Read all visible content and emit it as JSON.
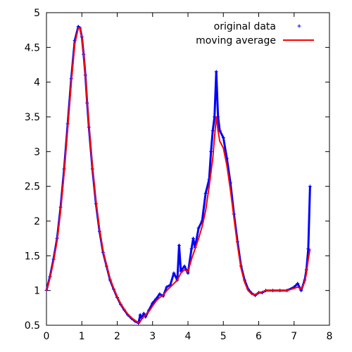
{
  "chart_data": {
    "type": "line",
    "xlim": [
      0,
      8
    ],
    "ylim": [
      0.5,
      5
    ],
    "x_ticks": [
      "0",
      "1",
      "2",
      "3",
      "4",
      "5",
      "6",
      "7",
      "8"
    ],
    "y_ticks": [
      "0.5",
      "1",
      "1.5",
      "2",
      "2.5",
      "3",
      "3.5",
      "4",
      "4.5",
      "5"
    ],
    "grid": false,
    "legend": "top-right",
    "colors": {
      "original": "#0000ff",
      "average": "#ff0000"
    },
    "series": [
      {
        "name": "original data",
        "marker": "plus",
        "x": [
          0.0,
          0.1,
          0.2,
          0.3,
          0.4,
          0.5,
          0.6,
          0.7,
          0.8,
          0.9,
          0.95,
          1.0,
          1.05,
          1.1,
          1.15,
          1.2,
          1.3,
          1.4,
          1.5,
          1.6,
          1.7,
          1.8,
          1.9,
          2.0,
          2.1,
          2.2,
          2.3,
          2.4,
          2.5,
          2.6,
          2.65,
          2.7,
          2.75,
          2.8,
          2.9,
          3.0,
          3.1,
          3.2,
          3.3,
          3.4,
          3.5,
          3.6,
          3.7,
          3.75,
          3.8,
          3.9,
          4.0,
          4.1,
          4.15,
          4.2,
          4.3,
          4.4,
          4.5,
          4.6,
          4.65,
          4.7,
          4.75,
          4.8,
          4.85,
          4.9,
          5.0,
          5.1,
          5.2,
          5.3,
          5.4,
          5.5,
          5.6,
          5.7,
          5.8,
          5.9,
          6.0,
          6.1,
          6.2,
          6.4,
          6.6,
          6.8,
          7.0,
          7.1,
          7.2,
          7.3,
          7.35,
          7.4,
          7.45
        ],
        "y": [
          1.0,
          1.2,
          1.45,
          1.75,
          2.2,
          2.75,
          3.4,
          4.05,
          4.6,
          4.8,
          4.78,
          4.65,
          4.4,
          4.1,
          3.7,
          3.35,
          2.75,
          2.25,
          1.85,
          1.55,
          1.35,
          1.15,
          1.02,
          0.9,
          0.8,
          0.72,
          0.65,
          0.6,
          0.56,
          0.53,
          0.65,
          0.6,
          0.67,
          0.62,
          0.72,
          0.82,
          0.88,
          0.95,
          0.92,
          1.05,
          1.08,
          1.25,
          1.15,
          1.65,
          1.28,
          1.35,
          1.25,
          1.6,
          1.75,
          1.62,
          1.9,
          2.0,
          2.4,
          2.6,
          3.0,
          3.3,
          3.5,
          4.15,
          3.5,
          3.3,
          3.2,
          2.9,
          2.55,
          2.1,
          1.7,
          1.35,
          1.15,
          1.02,
          0.96,
          0.93,
          0.97,
          0.97,
          1.0,
          1.0,
          1.0,
          1.0,
          1.05,
          1.1,
          1.0,
          1.15,
          1.3,
          1.6,
          2.5
        ]
      },
      {
        "name": "moving average",
        "marker": "line",
        "x": [
          0.0,
          0.1,
          0.2,
          0.3,
          0.4,
          0.5,
          0.6,
          0.7,
          0.8,
          0.9,
          0.95,
          1.0,
          1.05,
          1.1,
          1.15,
          1.2,
          1.3,
          1.4,
          1.5,
          1.6,
          1.7,
          1.8,
          1.9,
          2.0,
          2.1,
          2.2,
          2.3,
          2.4,
          2.5,
          2.6,
          2.65,
          2.7,
          2.8,
          2.9,
          3.0,
          3.1,
          3.2,
          3.3,
          3.4,
          3.5,
          3.6,
          3.7,
          3.8,
          3.9,
          4.0,
          4.1,
          4.2,
          4.3,
          4.4,
          4.5,
          4.6,
          4.7,
          4.75,
          4.8,
          4.85,
          4.9,
          5.0,
          5.1,
          5.2,
          5.3,
          5.4,
          5.5,
          5.6,
          5.7,
          5.8,
          5.9,
          6.0,
          6.1,
          6.2,
          6.4,
          6.6,
          6.8,
          7.0,
          7.1,
          7.2,
          7.3,
          7.35,
          7.4,
          7.45
        ],
        "y": [
          1.0,
          1.18,
          1.42,
          1.72,
          2.15,
          2.7,
          3.35,
          4.0,
          4.55,
          4.78,
          4.78,
          4.65,
          4.4,
          4.1,
          3.72,
          3.38,
          2.78,
          2.28,
          1.88,
          1.57,
          1.36,
          1.17,
          1.03,
          0.91,
          0.81,
          0.73,
          0.66,
          0.61,
          0.57,
          0.54,
          0.55,
          0.6,
          0.65,
          0.7,
          0.78,
          0.85,
          0.9,
          0.93,
          1.0,
          1.05,
          1.1,
          1.15,
          1.25,
          1.3,
          1.27,
          1.45,
          1.6,
          1.75,
          1.92,
          2.15,
          2.5,
          2.9,
          3.2,
          3.5,
          3.3,
          3.15,
          3.05,
          2.8,
          2.45,
          2.05,
          1.65,
          1.32,
          1.12,
          1.0,
          0.95,
          0.94,
          0.97,
          0.98,
          1.0,
          1.0,
          1.0,
          1.0,
          1.03,
          1.05,
          1.02,
          1.12,
          1.25,
          1.45,
          1.6
        ]
      }
    ]
  }
}
